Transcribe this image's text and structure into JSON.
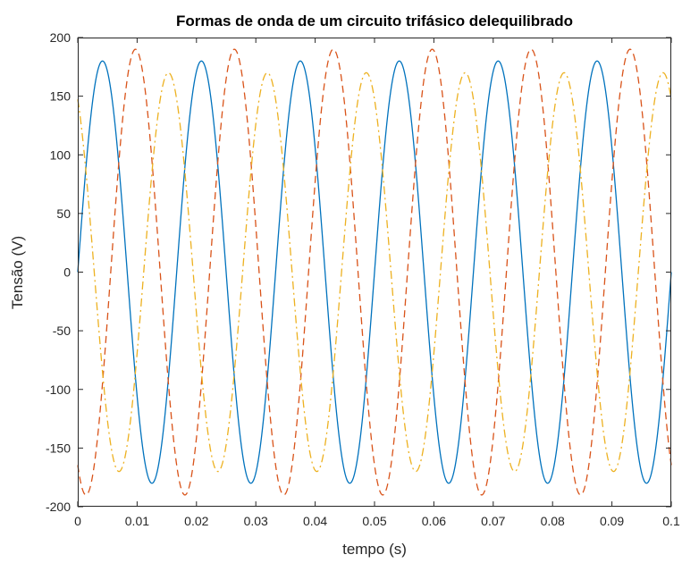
{
  "chart_data": {
    "type": "line",
    "title": "Formas de onda de um circuito trifásico delequilibrado",
    "xlabel": "tempo (s)",
    "ylabel": "Tensão (V)",
    "xlim": [
      0,
      0.1
    ],
    "ylim": [
      -200,
      200
    ],
    "xticks": [
      0,
      0.01,
      0.02,
      0.03,
      0.04,
      0.05,
      0.06,
      0.07,
      0.08,
      0.09,
      0.1
    ],
    "xtick_labels": [
      "0",
      "0.01",
      "0.02",
      "0.03",
      "0.04",
      "0.05",
      "0.06",
      "0.07",
      "0.08",
      "0.09",
      "0.1"
    ],
    "yticks": [
      -200,
      -150,
      -100,
      -50,
      0,
      50,
      100,
      150,
      200
    ],
    "ytick_labels": [
      "-200",
      "-150",
      "-100",
      "-50",
      "0",
      "50",
      "100",
      "150",
      "200"
    ],
    "grid": false,
    "legend": null,
    "frequency_hz": 60,
    "series": [
      {
        "amplitude": 180,
        "phase_deg": 0,
        "color": "#0072BD",
        "style": "solid"
      },
      {
        "amplitude": 190,
        "phase_deg": -120,
        "color": "#D95319",
        "style": "dashed"
      },
      {
        "amplitude": 170,
        "phase_deg": 120,
        "color": "#EDB120",
        "style": "dashdot"
      }
    ]
  }
}
